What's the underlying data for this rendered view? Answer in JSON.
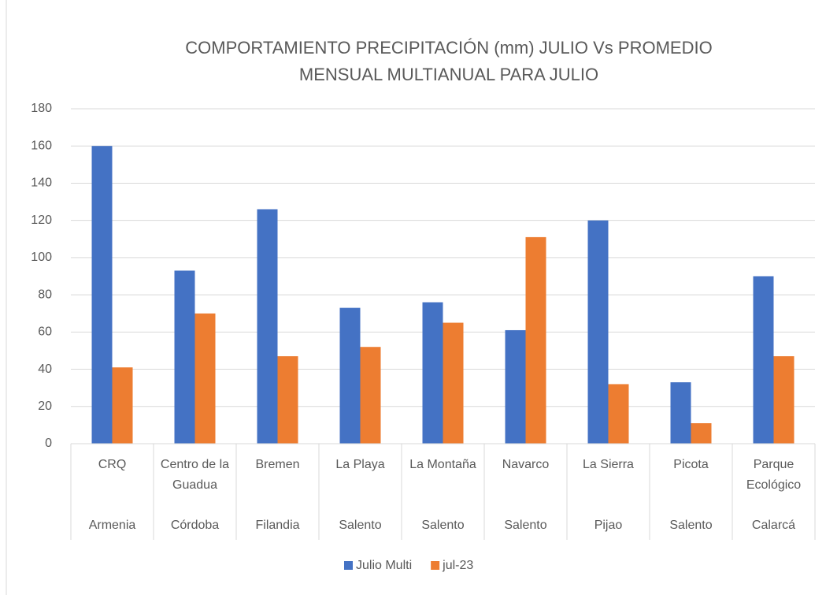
{
  "chart_data": {
    "type": "bar",
    "title": "COMPORTAMIENTO PRECIPITACIÓN (mm) JULIO Vs PROMEDIO MENSUAL MULTIANUAL PARA JULIO",
    "categories": [
      "CRQ",
      "Centro de la Guadua",
      "Bremen",
      "La Playa",
      "La Montaña",
      "Navarco",
      "La Sierra",
      "Picota",
      "Parque Ecológico"
    ],
    "groups": [
      "Armenia",
      "Córdoba",
      "Filandia",
      "Salento",
      "Salento",
      "Salento",
      "Pijao",
      "Salento",
      "Calarcá"
    ],
    "series": [
      {
        "name": "Julio Multi",
        "color": "#4472c4",
        "values": [
          160,
          93,
          126,
          73,
          76,
          61,
          120,
          33,
          90
        ]
      },
      {
        "name": "jul-23",
        "color": "#ed7d31",
        "values": [
          41,
          70,
          47,
          52,
          65,
          111,
          32,
          11,
          47
        ]
      }
    ],
    "ylim": [
      0,
      180
    ],
    "yticks": [
      0,
      20,
      40,
      60,
      80,
      100,
      120,
      140,
      160,
      180
    ],
    "grid": true,
    "legend": "bottom"
  }
}
